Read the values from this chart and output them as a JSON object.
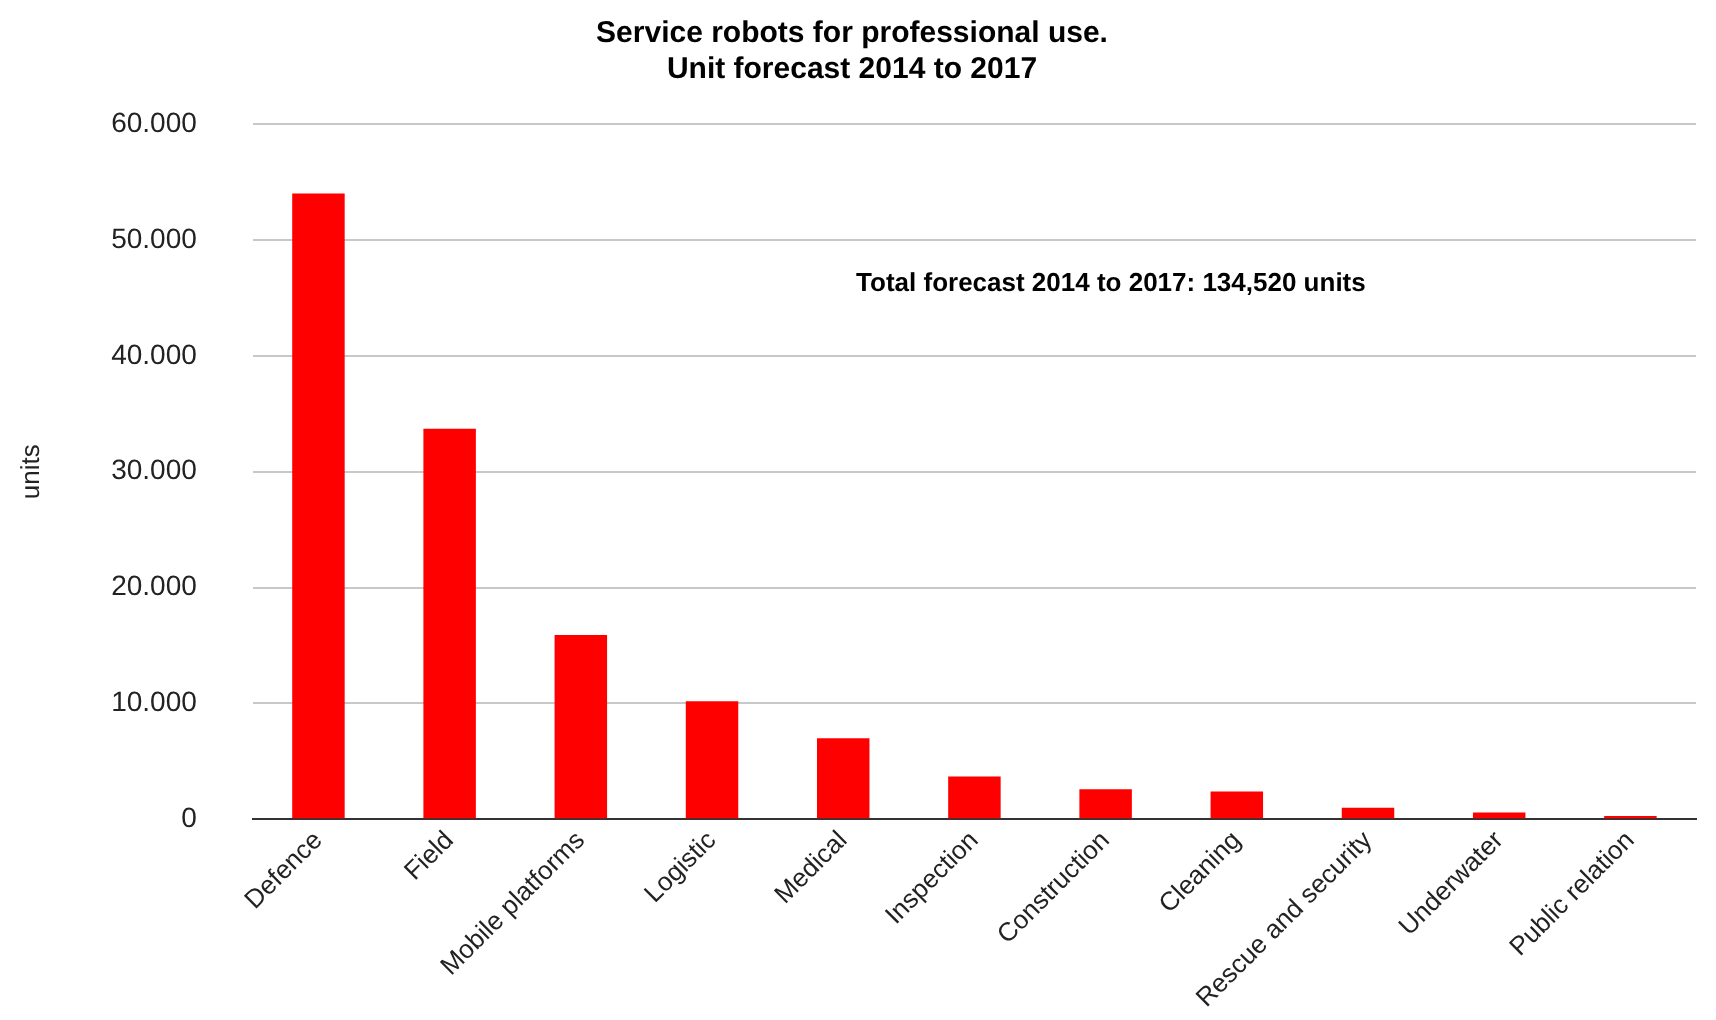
{
  "chart_data": {
    "type": "bar",
    "title": "Service robots for professional use.\nUnit forecast 2014 to 2017",
    "ylabel": "units",
    "categories": [
      "Defence",
      "Field",
      "Mobile platforms",
      "Logistic",
      "Medical",
      "Inspection",
      "Construction",
      "Cleaning",
      "Rescue and security",
      "Underwater",
      "Public relation"
    ],
    "values": [
      54000,
      33700,
      15900,
      10200,
      7000,
      3700,
      2600,
      2400,
      1000,
      600,
      300
    ],
    "color": "#ff0000",
    "ylim": [
      0,
      60000
    ],
    "yticks": [
      0,
      {
        "value": 10000,
        "label": "10.000"
      },
      {
        "value": 20000,
        "label": "20.000"
      },
      {
        "value": 30000,
        "label": "30.000"
      },
      {
        "value": 40000,
        "label": "40.000"
      },
      {
        "value": 50000,
        "label": "50.000"
      },
      {
        "value": 60000,
        "label": "60.000"
      }
    ],
    "grid": "y",
    "legend": false,
    "annotations": [
      "Total forecast 2014 to 2017: 134,520 units"
    ]
  }
}
